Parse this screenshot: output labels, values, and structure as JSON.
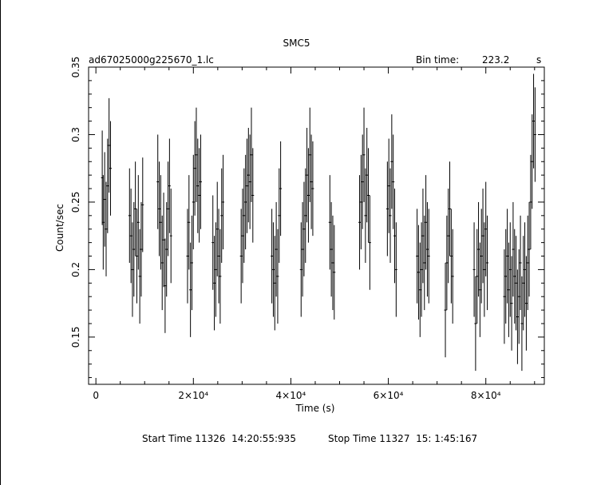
{
  "chart_data": {
    "type": "line",
    "title": "SMC5",
    "file_label": "ad67025000g225670_1.lc",
    "bin_time_label": "Bin time:",
    "bin_time_value": "223.2",
    "bin_time_unit": "s",
    "xlabel": "Time (s)",
    "ylabel": "Count/sec",
    "xlim": [
      -1500,
      92000
    ],
    "ylim": [
      0.115,
      0.35
    ],
    "xticks": [
      {
        "value": 0,
        "label": "0"
      },
      {
        "value": 20000,
        "label": "2×10⁴"
      },
      {
        "value": 40000,
        "label": "4×10⁴"
      },
      {
        "value": 60000,
        "label": "6×10⁴"
      },
      {
        "value": 80000,
        "label": "8×10⁴"
      }
    ],
    "yticks": [
      {
        "value": 0.15,
        "label": "0.15"
      },
      {
        "value": 0.2,
        "label": "0.2"
      },
      {
        "value": 0.25,
        "label": "0.25"
      },
      {
        "value": 0.3,
        "label": "0.3"
      },
      {
        "value": 0.35,
        "label": "0.35"
      }
    ],
    "series": [
      {
        "error": 0.035,
        "points": [
          [
            1300,
            0.268
          ],
          [
            1500,
            0.235
          ],
          [
            1800,
            0.252
          ],
          [
            2100,
            0.23
          ],
          [
            2400,
            0.262
          ],
          [
            2700,
            0.292
          ],
          [
            3000,
            0.275
          ],
          [
            6900,
            0.24
          ],
          [
            7200,
            0.225
          ],
          [
            7500,
            0.2
          ],
          [
            7800,
            0.215
          ],
          [
            8100,
            0.245
          ],
          [
            8400,
            0.21
          ],
          [
            8700,
            0.235
          ],
          [
            9000,
            0.195
          ],
          [
            9300,
            0.215
          ],
          [
            9600,
            0.248
          ],
          [
            12700,
            0.265
          ],
          [
            13000,
            0.245
          ],
          [
            13300,
            0.235
          ],
          [
            13600,
            0.205
          ],
          [
            13900,
            0.222
          ],
          [
            14200,
            0.188
          ],
          [
            14500,
            0.215
          ],
          [
            14800,
            0.245
          ],
          [
            15100,
            0.262
          ],
          [
            15400,
            0.225
          ],
          [
            18800,
            0.21
          ],
          [
            19100,
            0.235
          ],
          [
            19400,
            0.185
          ],
          [
            19700,
            0.205
          ],
          [
            20000,
            0.25
          ],
          [
            20300,
            0.275
          ],
          [
            20600,
            0.285
          ],
          [
            20900,
            0.262
          ],
          [
            21200,
            0.255
          ],
          [
            21500,
            0.265
          ],
          [
            24000,
            0.22
          ],
          [
            24300,
            0.19
          ],
          [
            24600,
            0.2
          ],
          [
            24900,
            0.23
          ],
          [
            25200,
            0.21
          ],
          [
            25500,
            0.195
          ],
          [
            25800,
            0.24
          ],
          [
            26100,
            0.25
          ],
          [
            29800,
            0.21
          ],
          [
            30100,
            0.225
          ],
          [
            30400,
            0.24
          ],
          [
            30700,
            0.25
          ],
          [
            31000,
            0.262
          ],
          [
            31300,
            0.27
          ],
          [
            31600,
            0.265
          ],
          [
            31900,
            0.285
          ],
          [
            32200,
            0.255
          ],
          [
            36100,
            0.21
          ],
          [
            36400,
            0.2
          ],
          [
            36700,
            0.19
          ],
          [
            37000,
            0.215
          ],
          [
            37300,
            0.195
          ],
          [
            37600,
            0.24
          ],
          [
            37900,
            0.26
          ],
          [
            42100,
            0.2
          ],
          [
            42400,
            0.215
          ],
          [
            42700,
            0.23
          ],
          [
            43000,
            0.24
          ],
          [
            43300,
            0.27
          ],
          [
            43600,
            0.255
          ],
          [
            43900,
            0.285
          ],
          [
            44200,
            0.265
          ],
          [
            44500,
            0.26
          ],
          [
            48000,
            0.235
          ],
          [
            48300,
            0.215
          ],
          [
            48600,
            0.205
          ],
          [
            48900,
            0.198
          ],
          [
            54100,
            0.235
          ],
          [
            54400,
            0.25
          ],
          [
            54700,
            0.265
          ],
          [
            55000,
            0.285
          ],
          [
            55300,
            0.24
          ],
          [
            55600,
            0.27
          ],
          [
            55900,
            0.255
          ],
          [
            56200,
            0.22
          ],
          [
            59800,
            0.245
          ],
          [
            60100,
            0.262
          ],
          [
            60400,
            0.24
          ],
          [
            60700,
            0.28
          ],
          [
            61000,
            0.265
          ],
          [
            61300,
            0.225
          ],
          [
            61600,
            0.2
          ],
          [
            65900,
            0.21
          ],
          [
            66200,
            0.198
          ],
          [
            66500,
            0.185
          ],
          [
            66800,
            0.2
          ],
          [
            67100,
            0.225
          ],
          [
            67400,
            0.205
          ],
          [
            67700,
            0.235
          ],
          [
            68000,
            0.215
          ],
          [
            68300,
            0.21
          ],
          [
            71700,
            0.17
          ],
          [
            72000,
            0.205
          ],
          [
            72300,
            0.225
          ],
          [
            72600,
            0.245
          ],
          [
            72900,
            0.21
          ],
          [
            73200,
            0.195
          ],
          [
            77600,
            0.2
          ],
          [
            77900,
            0.16
          ],
          [
            78200,
            0.195
          ],
          [
            78500,
            0.215
          ],
          [
            78800,
            0.185
          ],
          [
            79100,
            0.21
          ],
          [
            79400,
            0.225
          ],
          [
            79700,
            0.2
          ],
          [
            80000,
            0.23
          ],
          [
            80300,
            0.205
          ],
          [
            83800,
            0.18
          ],
          [
            84100,
            0.195
          ],
          [
            84400,
            0.21
          ],
          [
            84700,
            0.185
          ],
          [
            85000,
            0.2
          ],
          [
            85300,
            0.175
          ],
          [
            85600,
            0.215
          ],
          [
            85900,
            0.195
          ],
          [
            86200,
            0.19
          ],
          [
            86500,
            0.165
          ],
          [
            86800,
            0.18
          ],
          [
            87100,
            0.205
          ],
          [
            87400,
            0.16
          ],
          [
            87700,
            0.19
          ],
          [
            88000,
            0.2
          ],
          [
            88300,
            0.175
          ],
          [
            88600,
            0.205
          ],
          [
            88900,
            0.215
          ],
          [
            89200,
            0.25
          ],
          [
            89500,
            0.28
          ],
          [
            89800,
            0.31
          ],
          [
            90100,
            0.3
          ]
        ]
      }
    ],
    "footer": {
      "start": "Start Time 11326  14:20:55:935",
      "stop": "Stop Time 11327  15: 1:45:167"
    }
  }
}
